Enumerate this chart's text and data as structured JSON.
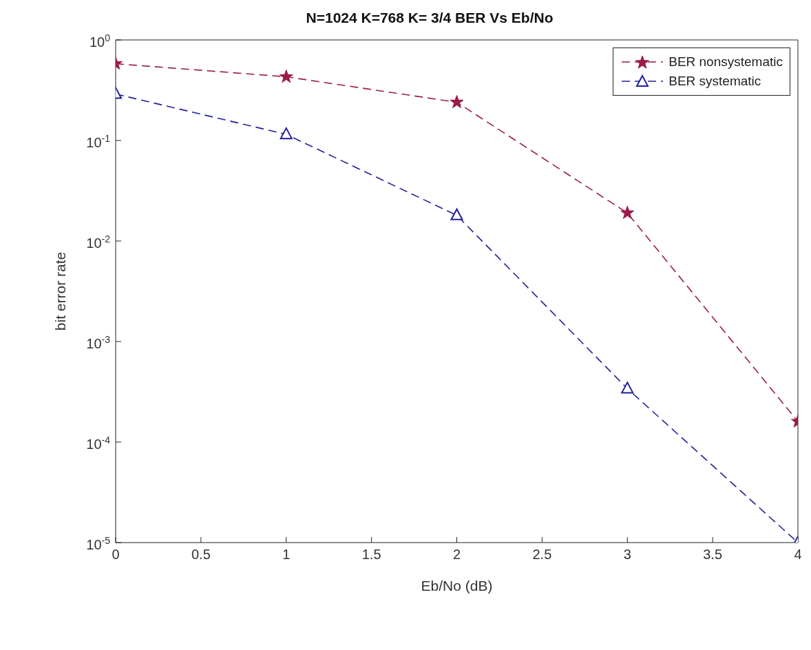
{
  "chart_data": {
    "type": "line",
    "title": "N=1024 K=768 K= 3/4 BER Vs Eb/No",
    "xlabel": "Eb/No (dB)",
    "ylabel": "bit error rate",
    "x": [
      0,
      1,
      2,
      3,
      4
    ],
    "series": [
      {
        "name": "BER nonsystematic",
        "color": "#9b1b4b",
        "values": [
          0.58,
          0.43,
          0.24,
          0.019,
          0.00016
        ],
        "marker": "star",
        "line_style": "dashed"
      },
      {
        "name": "BER systematic",
        "color": "#1f1f9a",
        "values": [
          0.29,
          0.115,
          0.018,
          0.00034,
          1e-05
        ],
        "marker": "triangle",
        "line_style": "dashed"
      }
    ],
    "log": "y",
    "xlim": [
      0,
      4
    ],
    "xticks": [
      0,
      0.5,
      1,
      1.5,
      2,
      2.5,
      3,
      3.5,
      4
    ],
    "ylim": [
      1e-05,
      1
    ],
    "yticks": [
      {
        "value": 1e-05,
        "label": "10$^{-5}$"
      },
      {
        "value": 0.0001,
        "label": "10$^{-4}$"
      },
      {
        "value": 0.001,
        "label": "10$^{-3}$"
      },
      {
        "value": 0.01,
        "label": "10$^{-2}$"
      },
      {
        "value": 0.1,
        "label": "10$^{-1}$"
      },
      {
        "value": 1,
        "label": "10$^{0}$"
      }
    ],
    "grid": false,
    "legend": "top right"
  }
}
